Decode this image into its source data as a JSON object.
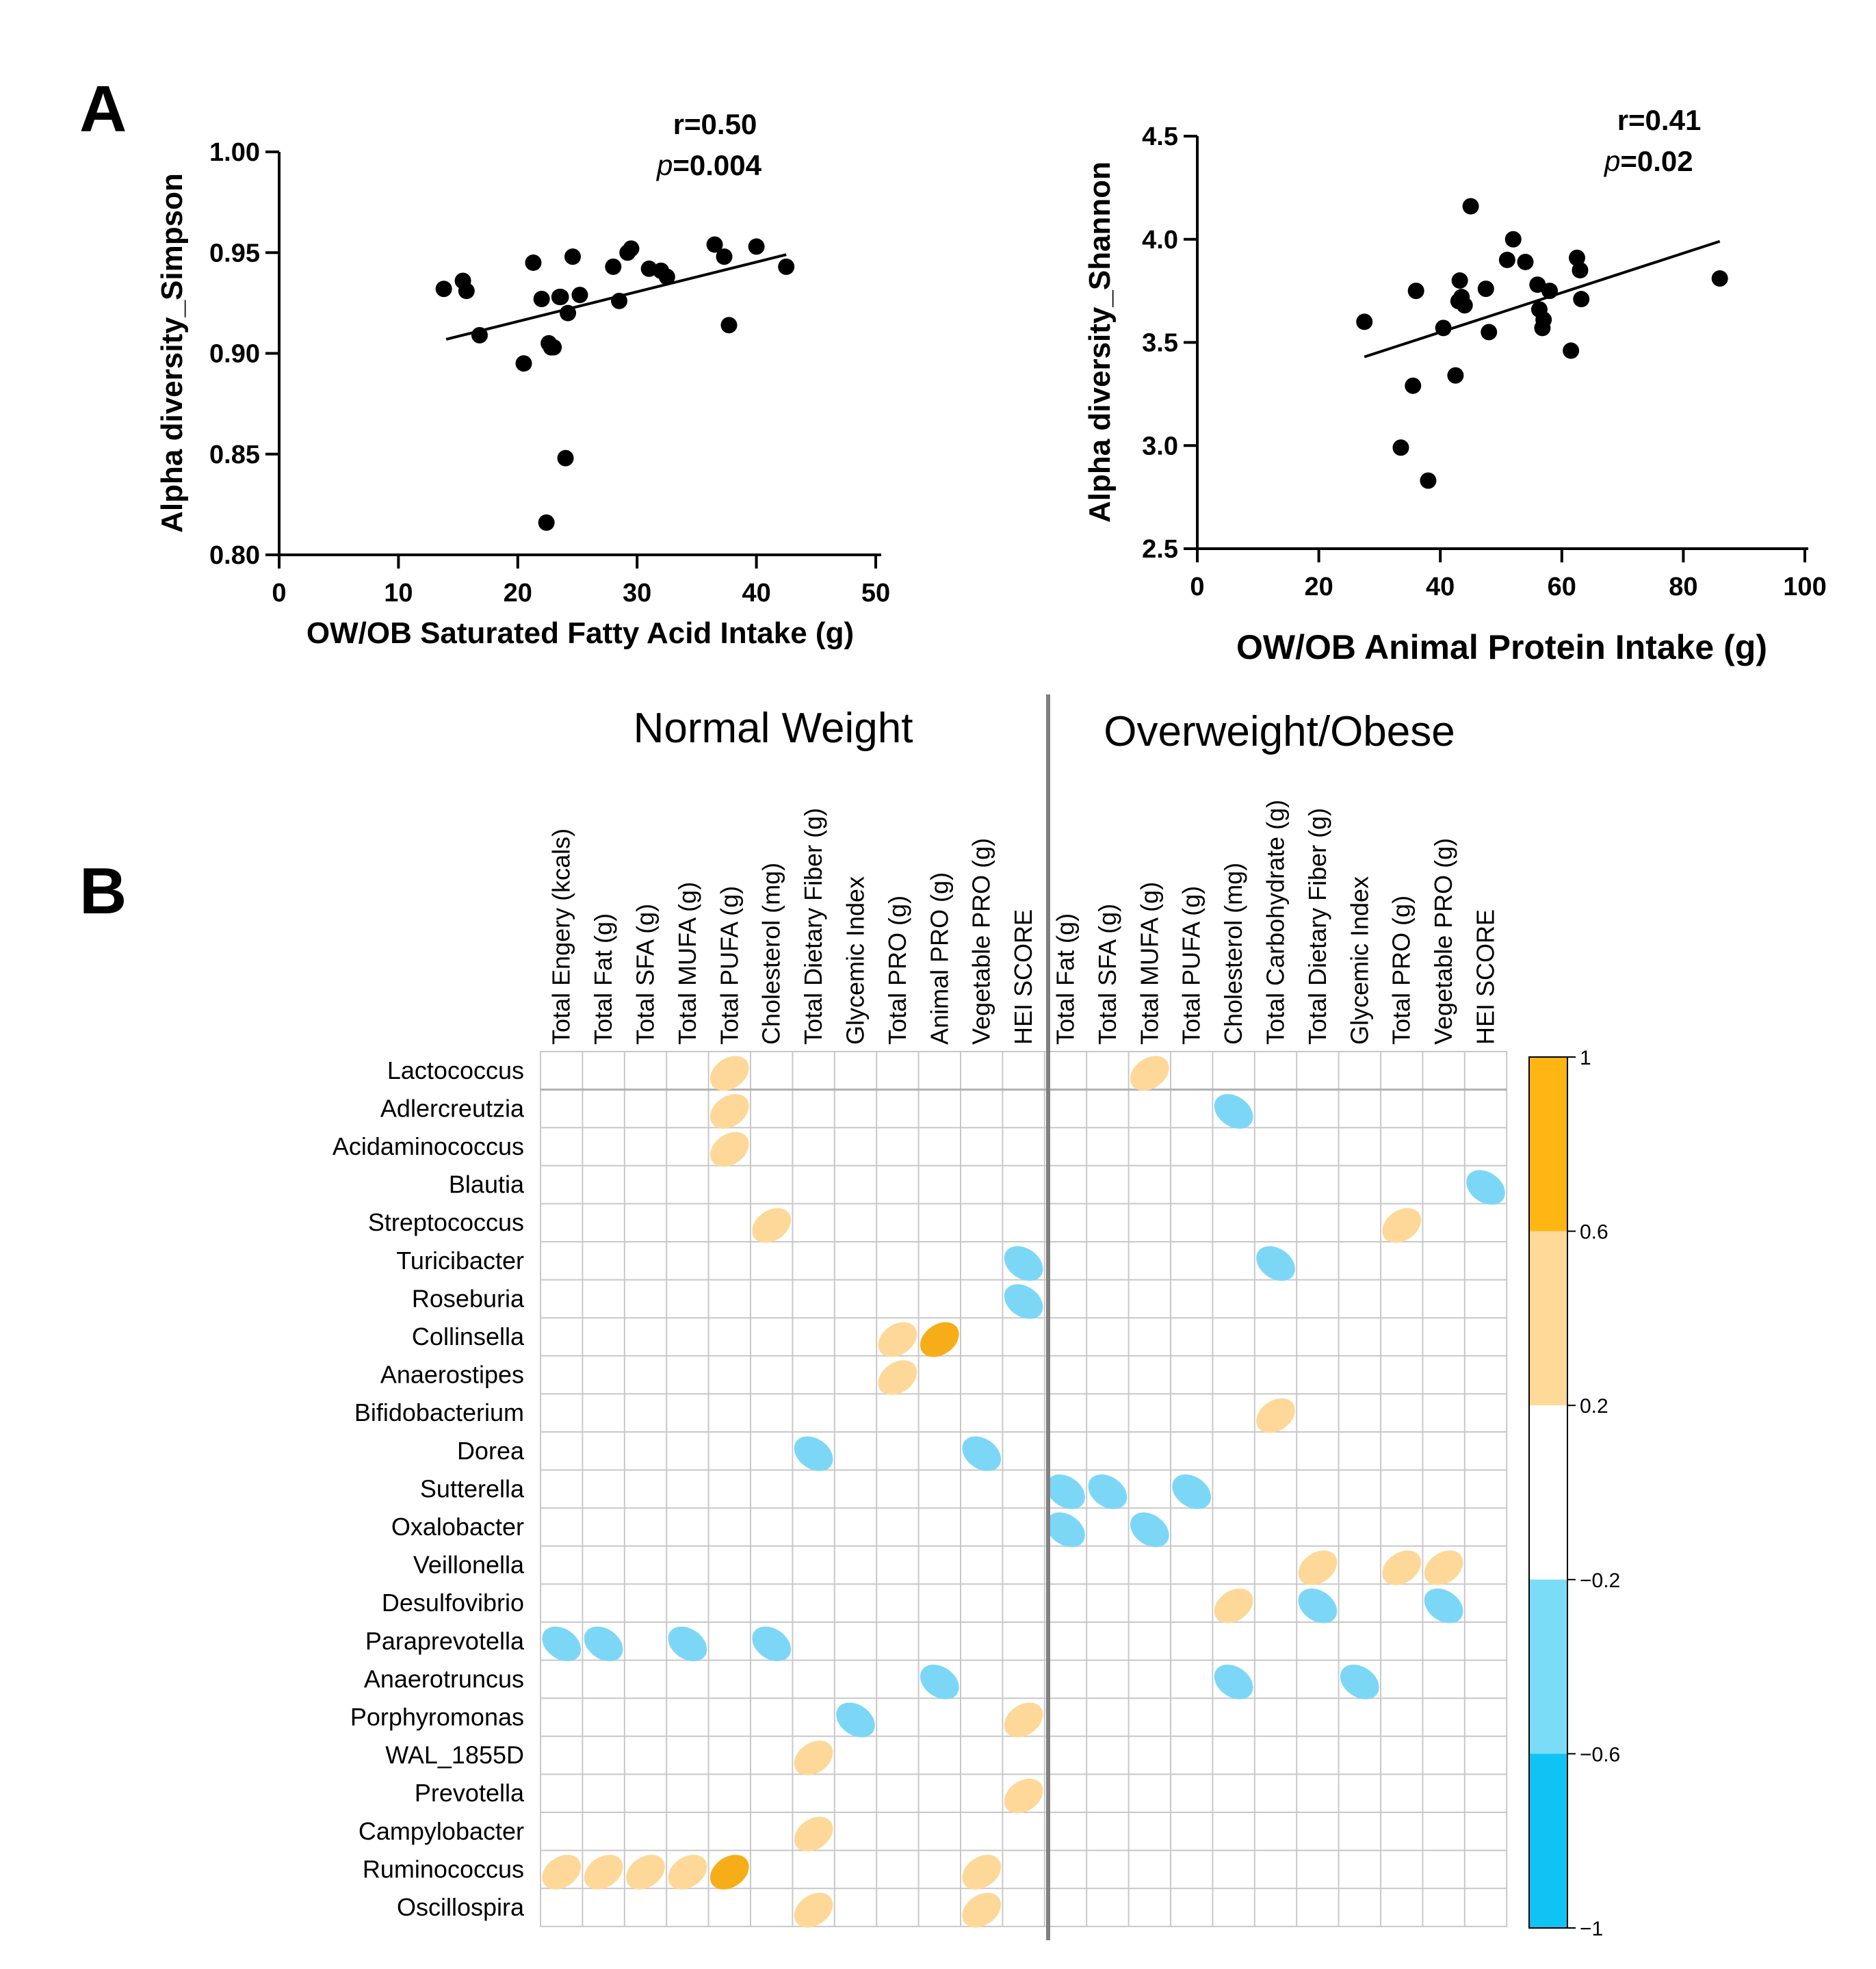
{
  "panel_labels": {
    "a": "A",
    "b": "B"
  },
  "chart_data": [
    {
      "type": "scatter",
      "name": "simpson_vs_sfa",
      "xlabel": "OW/OB Saturated Fatty Acid Intake (g)",
      "ylabel": "Alpha diversity_Simpson",
      "xlim": [
        0,
        50
      ],
      "ylim": [
        0.8,
        1.0
      ],
      "xticks": [
        0,
        10,
        20,
        30,
        40,
        50
      ],
      "xtick_labels": [
        "0",
        "10",
        "20",
        "30",
        "40",
        "50"
      ],
      "yticks": [
        0.8,
        0.85,
        0.9,
        0.95,
        1.0
      ],
      "ytick_labels": [
        "0.80",
        "0.85",
        "0.90",
        "0.95",
        "1.00"
      ],
      "annotation_r": "r=0.50",
      "annotation_p_symbol": "p",
      "annotation_p_value": "=0.004",
      "fit_line": {
        "x": [
          14,
          42.5
        ],
        "y": [
          0.907,
          0.949
        ]
      },
      "x": [
        13.8,
        15.4,
        15.7,
        16.8,
        20.5,
        21.3,
        22.0,
        22.6,
        22.8,
        23.0,
        23.5,
        23.6,
        24.2,
        24.6,
        25.2,
        28.0,
        28.5,
        29.2,
        29.5,
        31.0,
        32.0,
        32.5,
        36.5,
        37.3,
        37.7,
        40.0,
        42.5,
        24.0,
        22.4
      ],
      "y": [
        0.932,
        0.936,
        0.931,
        0.909,
        0.895,
        0.945,
        0.927,
        0.905,
        0.903,
        0.903,
        0.928,
        0.928,
        0.92,
        0.948,
        0.929,
        0.943,
        0.926,
        0.95,
        0.952,
        0.942,
        0.941,
        0.938,
        0.954,
        0.948,
        0.914,
        0.953,
        0.943,
        0.848,
        0.816
      ]
    },
    {
      "type": "scatter",
      "name": "shannon_vs_animal_protein",
      "xlabel": "OW/OB Animal Protein Intake (g)",
      "ylabel": "Alpha diversity_Shannon",
      "xlim": [
        0,
        100
      ],
      "ylim": [
        2.5,
        4.5
      ],
      "xticks": [
        0,
        20,
        40,
        60,
        80,
        100
      ],
      "xtick_labels": [
        "0",
        "20",
        "40",
        "60",
        "80",
        "100"
      ],
      "yticks": [
        2.5,
        3.0,
        3.5,
        4.0,
        4.5
      ],
      "ytick_labels": [
        "2.5",
        "3.0",
        "3.5",
        "4.0",
        "4.5"
      ],
      "annotation_r": "r=0.41",
      "annotation_p_symbol": "p",
      "annotation_p_value": "=0.02",
      "fit_line": {
        "x": [
          27.5,
          86
        ],
        "y": [
          3.43,
          3.99
        ]
      },
      "x": [
        27.5,
        33.5,
        35.5,
        36.0,
        38.0,
        40.5,
        42.5,
        43.0,
        43.2,
        43.5,
        44.0,
        45.0,
        47.5,
        48.0,
        51.0,
        52.0,
        54.0,
        56.0,
        56.3,
        56.8,
        57.0,
        58.0,
        61.5,
        62.5,
        63.0,
        63.2,
        86.0
      ],
      "y": [
        3.6,
        2.99,
        3.29,
        3.75,
        2.83,
        3.57,
        3.34,
        3.7,
        3.8,
        3.72,
        3.68,
        4.16,
        3.76,
        3.55,
        3.9,
        4.0,
        3.89,
        3.78,
        3.66,
        3.57,
        3.61,
        3.75,
        3.46,
        3.91,
        3.85,
        3.71,
        3.81
      ]
    },
    {
      "type": "heatmap",
      "name": "correlation_plot",
      "group_titles": {
        "normal": "Normal Weight",
        "obese": "Overweight/Obese"
      },
      "columns_normal": [
        "Total Engery (kcals)",
        "Total Fat (g)",
        "Total SFA (g)",
        "Total MUFA (g)",
        "Total PUFA (g)",
        "Cholesterol (mg)",
        "Total Dietary Fiber (g)",
        "Glycemic Index",
        "Total PRO (g)",
        "Animal PRO (g)",
        "Vegetable PRO (g)",
        "HEI SCORE"
      ],
      "columns_obese": [
        "Total Fat (g)",
        "Total SFA (g)",
        "Total MUFA (g)",
        "Total PUFA (g)",
        "Cholesterol (mg)",
        "Total Carbohydrate (g)",
        "Total Dietary Fiber (g)",
        "Glycemic Index",
        "Total PRO (g)",
        "Vegetable PRO (g)",
        "HEI SCORE"
      ],
      "rows": [
        "Lactococcus",
        "Adlercreutzia",
        "Acidaminococcus",
        "Blautia",
        "Streptococcus",
        "Turicibacter",
        "Roseburia",
        "Collinsella",
        "Anaerostipes",
        "Bifidobacterium",
        "Dorea",
        "Sutterella",
        "Oxalobacter",
        "Veillonella",
        "Desulfovibrio",
        "Paraprevotella",
        "Anaerotruncus",
        "Porphyromonas",
        "WAL_1855D",
        "Prevotella",
        "Campylobacter",
        "Ruminococcus",
        "Oscillospira"
      ],
      "cells": [
        [
          0,
          4,
          0.45
        ],
        [
          0,
          14,
          0.45
        ],
        [
          1,
          4,
          0.45
        ],
        [
          1,
          16,
          -0.45
        ],
        [
          2,
          4,
          0.45
        ],
        [
          3,
          22,
          -0.45
        ],
        [
          4,
          5,
          0.45
        ],
        [
          4,
          20,
          0.45
        ],
        [
          5,
          11,
          -0.45
        ],
        [
          5,
          17,
          -0.45
        ],
        [
          6,
          11,
          -0.45
        ],
        [
          7,
          8,
          0.45
        ],
        [
          7,
          9,
          0.7
        ],
        [
          8,
          8,
          0.45
        ],
        [
          9,
          17,
          0.45
        ],
        [
          10,
          6,
          -0.45
        ],
        [
          10,
          10,
          -0.45
        ],
        [
          11,
          12,
          -0.45
        ],
        [
          11,
          13,
          -0.45
        ],
        [
          11,
          15,
          -0.45
        ],
        [
          12,
          12,
          -0.45
        ],
        [
          12,
          14,
          -0.45
        ],
        [
          13,
          18,
          0.45
        ],
        [
          13,
          20,
          0.45
        ],
        [
          13,
          21,
          0.45
        ],
        [
          14,
          16,
          0.45
        ],
        [
          14,
          18,
          -0.45
        ],
        [
          14,
          21,
          -0.45
        ],
        [
          15,
          0,
          -0.45
        ],
        [
          15,
          1,
          -0.45
        ],
        [
          15,
          3,
          -0.45
        ],
        [
          15,
          5,
          -0.45
        ],
        [
          16,
          9,
          -0.45
        ],
        [
          16,
          16,
          -0.45
        ],
        [
          16,
          19,
          -0.45
        ],
        [
          17,
          7,
          -0.45
        ],
        [
          17,
          11,
          0.45
        ],
        [
          18,
          6,
          0.45
        ],
        [
          19,
          11,
          0.45
        ],
        [
          20,
          6,
          0.45
        ],
        [
          21,
          0,
          0.45
        ],
        [
          21,
          1,
          0.45
        ],
        [
          21,
          2,
          0.45
        ],
        [
          21,
          3,
          0.45
        ],
        [
          21,
          4,
          0.7
        ],
        [
          21,
          10,
          0.45
        ],
        [
          22,
          6,
          0.45
        ],
        [
          22,
          10,
          0.45
        ]
      ],
      "legend": {
        "labels": [
          "1",
          "0.6",
          "0.2",
          "−0.2",
          "−0.6",
          "−1"
        ],
        "values": [
          1,
          0.6,
          0.2,
          -0.2,
          -0.6,
          -1
        ],
        "colors": [
          "#ffb612",
          "#fed997",
          "#ffffff",
          "#7bdcf8",
          "#10c3f5"
        ]
      },
      "colors": {
        "strong_pos": "#f7ad18",
        "weak_pos": "#fdd898",
        "weak_neg": "#7cd7f6",
        "strong_neg": "#10c3f5"
      }
    }
  ]
}
